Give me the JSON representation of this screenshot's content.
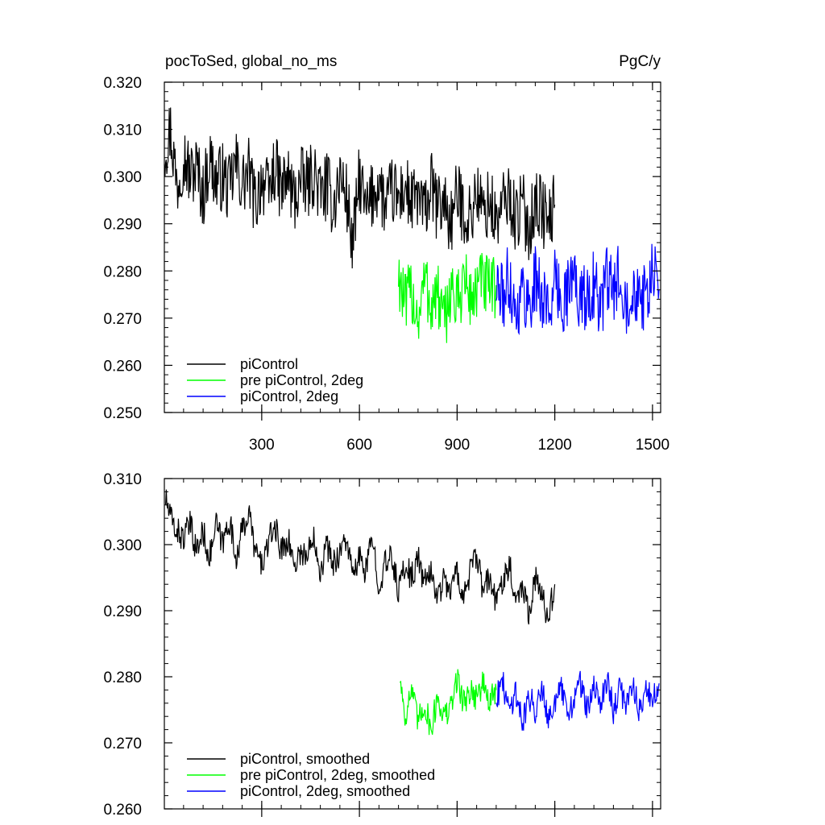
{
  "chart_data": [
    {
      "type": "line",
      "title_left": "pocToSed, global_no_ms",
      "title_right": "PgC/y",
      "xlabel": "",
      "ylabel": "",
      "xlim": [
        1,
        1525
      ],
      "ylim": [
        0.25,
        0.32
      ],
      "x_ticks": [
        300,
        600,
        900,
        1200,
        1500
      ],
      "x_tick_labels": [
        "300",
        "600",
        "900",
        "1200",
        "1500"
      ],
      "y_ticks": [
        0.25,
        0.26,
        0.27,
        0.28,
        0.29,
        0.3,
        0.31,
        0.32
      ],
      "y_tick_labels": [
        "0.250",
        "0.260",
        "0.270",
        "0.280",
        "0.290",
        "0.300",
        "0.310",
        "0.320"
      ],
      "legend_position": "bottom-left",
      "series": [
        {
          "name": "piControl",
          "color": "#000000",
          "x": [
            1,
            20,
            40,
            60,
            80,
            100,
            120,
            140,
            160,
            180,
            200,
            220,
            240,
            260,
            280,
            300,
            320,
            340,
            360,
            380,
            400,
            420,
            440,
            460,
            480,
            500,
            520,
            540,
            560,
            580,
            600,
            620,
            640,
            660,
            680,
            700,
            720,
            740,
            760,
            780,
            800,
            820,
            840,
            860,
            880,
            900,
            920,
            940,
            960,
            980,
            1000,
            1020,
            1040,
            1060,
            1080,
            1100,
            1120,
            1140,
            1160,
            1180,
            1200
          ],
          "y": [
            0.306,
            0.31,
            0.298,
            0.305,
            0.3,
            0.302,
            0.296,
            0.304,
            0.299,
            0.3,
            0.297,
            0.303,
            0.298,
            0.301,
            0.294,
            0.3,
            0.296,
            0.302,
            0.297,
            0.3,
            0.295,
            0.299,
            0.298,
            0.301,
            0.296,
            0.298,
            0.294,
            0.3,
            0.296,
            0.285,
            0.3,
            0.292,
            0.296,
            0.299,
            0.293,
            0.297,
            0.295,
            0.298,
            0.294,
            0.296,
            0.292,
            0.298,
            0.293,
            0.295,
            0.29,
            0.296,
            0.293,
            0.291,
            0.297,
            0.292,
            0.295,
            0.29,
            0.294,
            0.296,
            0.291,
            0.294,
            0.289,
            0.295,
            0.293,
            0.29,
            0.294
          ]
        },
        {
          "name": "pre piControl, 2deg",
          "color": "#00ff00",
          "x": [
            720,
            740,
            760,
            780,
            800,
            820,
            840,
            860,
            880,
            900,
            920,
            940,
            960,
            980,
            1000,
            1020
          ],
          "y": [
            0.28,
            0.272,
            0.276,
            0.27,
            0.278,
            0.273,
            0.275,
            0.268,
            0.277,
            0.272,
            0.279,
            0.274,
            0.276,
            0.278,
            0.275,
            0.277
          ]
        },
        {
          "name": "piControl, 2deg",
          "color": "#0000ff",
          "x": [
            1020,
            1040,
            1060,
            1080,
            1100,
            1120,
            1140,
            1160,
            1180,
            1200,
            1220,
            1240,
            1260,
            1280,
            1300,
            1320,
            1340,
            1360,
            1380,
            1400,
            1420,
            1440,
            1460,
            1480,
            1500,
            1520
          ],
          "y": [
            0.277,
            0.274,
            0.279,
            0.271,
            0.276,
            0.273,
            0.278,
            0.275,
            0.272,
            0.277,
            0.274,
            0.276,
            0.279,
            0.273,
            0.275,
            0.277,
            0.272,
            0.278,
            0.275,
            0.28,
            0.274,
            0.277,
            0.276,
            0.273,
            0.279,
            0.276
          ]
        }
      ]
    },
    {
      "type": "line",
      "xlabel": "",
      "ylabel": "",
      "xlim": [
        1,
        1525
      ],
      "ylim": [
        0.26,
        0.31
      ],
      "x_ticks": [
        300,
        600,
        900,
        1200,
        1500
      ],
      "y_ticks": [
        0.26,
        0.27,
        0.28,
        0.29,
        0.3,
        0.31
      ],
      "y_tick_labels": [
        "0.260",
        "0.270",
        "0.280",
        "0.290",
        "0.300",
        "0.310"
      ],
      "legend_position": "bottom-left",
      "series": [
        {
          "name": "piControl, smoothed",
          "color": "#000000",
          "x": [
            5,
            20,
            40,
            60,
            80,
            100,
            120,
            140,
            160,
            180,
            200,
            220,
            240,
            260,
            280,
            300,
            320,
            340,
            360,
            380,
            400,
            420,
            440,
            460,
            480,
            500,
            520,
            540,
            560,
            580,
            600,
            620,
            640,
            660,
            680,
            700,
            720,
            740,
            760,
            780,
            800,
            820,
            840,
            860,
            880,
            900,
            920,
            940,
            960,
            980,
            1000,
            1020,
            1040,
            1060,
            1080,
            1100,
            1120,
            1140,
            1160,
            1180,
            1200
          ],
          "y": [
            0.307,
            0.304,
            0.302,
            0.301,
            0.303,
            0.299,
            0.302,
            0.298,
            0.303,
            0.3,
            0.304,
            0.298,
            0.302,
            0.305,
            0.299,
            0.297,
            0.3,
            0.303,
            0.299,
            0.301,
            0.297,
            0.299,
            0.298,
            0.302,
            0.296,
            0.3,
            0.297,
            0.299,
            0.301,
            0.295,
            0.298,
            0.296,
            0.301,
            0.294,
            0.297,
            0.298,
            0.293,
            0.297,
            0.295,
            0.298,
            0.294,
            0.296,
            0.292,
            0.295,
            0.293,
            0.296,
            0.292,
            0.296,
            0.298,
            0.293,
            0.295,
            0.291,
            0.295,
            0.297,
            0.292,
            0.294,
            0.29,
            0.295,
            0.292,
            0.289,
            0.294
          ]
        },
        {
          "name": "pre piControl, 2deg, smoothed",
          "color": "#00ff00",
          "x": [
            725,
            740,
            760,
            780,
            800,
            820,
            840,
            860,
            880,
            900,
            920,
            940,
            960,
            980,
            1000,
            1020
          ],
          "y": [
            0.28,
            0.274,
            0.278,
            0.273,
            0.276,
            0.272,
            0.277,
            0.274,
            0.275,
            0.28,
            0.276,
            0.278,
            0.277,
            0.279,
            0.276,
            0.278
          ]
        },
        {
          "name": "piControl, 2deg, smoothed",
          "color": "#0000ff",
          "x": [
            1020,
            1040,
            1060,
            1080,
            1100,
            1120,
            1140,
            1160,
            1180,
            1200,
            1220,
            1240,
            1260,
            1280,
            1300,
            1320,
            1340,
            1360,
            1380,
            1400,
            1420,
            1440,
            1460,
            1480,
            1500,
            1520
          ],
          "y": [
            0.277,
            0.279,
            0.275,
            0.278,
            0.273,
            0.277,
            0.275,
            0.279,
            0.274,
            0.276,
            0.278,
            0.274,
            0.277,
            0.279,
            0.275,
            0.278,
            0.276,
            0.28,
            0.275,
            0.278,
            0.276,
            0.279,
            0.275,
            0.278,
            0.276,
            0.279
          ]
        }
      ]
    }
  ]
}
